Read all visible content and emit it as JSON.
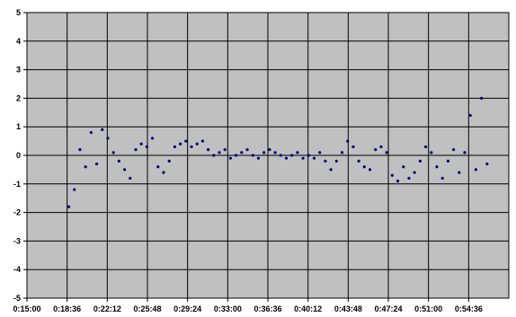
{
  "chart_data": {
    "type": "scatter",
    "title": "",
    "xlabel": "",
    "ylabel": "",
    "x_tick_labels": [
      "0:15:00",
      "0:18:36",
      "0:22:12",
      "0:25:48",
      "0:29:24",
      "0:33:00",
      "0:36:36",
      "0:40:12",
      "0:43:48",
      "0:47:24",
      "0:51:00",
      "0:54:36"
    ],
    "y_tick_labels": [
      "5",
      "4",
      "3",
      "2",
      "1",
      "0",
      "-1",
      "-2",
      "-3",
      "-4",
      "-5"
    ],
    "xlim": [
      "0:15:00",
      "0:58:12"
    ],
    "ylim": [
      -5,
      5
    ],
    "grid": true,
    "colors": {
      "plot_bg": "#c0c0c0",
      "marker": "#000080",
      "grid": "#000000"
    },
    "series": [
      {
        "x": [
          "0:18:45",
          "0:19:15",
          "0:19:45",
          "0:20:15",
          "0:20:45",
          "0:21:15",
          "0:21:45",
          "0:22:15",
          "0:22:45",
          "0:23:15",
          "0:23:45",
          "0:24:15",
          "0:24:45",
          "0:25:15",
          "0:25:45",
          "0:26:15",
          "0:26:45",
          "0:27:15",
          "0:27:45",
          "0:28:15",
          "0:28:45",
          "0:29:15",
          "0:29:45",
          "0:30:15",
          "0:30:45",
          "0:31:15",
          "0:31:45",
          "0:32:15",
          "0:32:45",
          "0:33:15",
          "0:33:45",
          "0:34:15",
          "0:34:45",
          "0:35:15",
          "0:35:45",
          "0:36:15",
          "0:36:45",
          "0:37:15",
          "0:37:45",
          "0:38:15",
          "0:38:45",
          "0:39:15",
          "0:39:45",
          "0:40:15",
          "0:40:45",
          "0:41:15",
          "0:41:45",
          "0:42:15",
          "0:42:45",
          "0:43:15",
          "0:43:45",
          "0:44:15",
          "0:44:45",
          "0:45:15",
          "0:45:45",
          "0:46:15",
          "0:46:45",
          "0:47:15",
          "0:47:45",
          "0:48:15",
          "0:48:45",
          "0:49:15",
          "0:49:45",
          "0:50:15",
          "0:50:45",
          "0:51:15",
          "0:51:45",
          "0:52:15",
          "0:52:45",
          "0:53:15",
          "0:53:45",
          "0:54:15",
          "0:54:45",
          "0:55:15",
          "0:55:45",
          "0:56:15"
        ],
        "y": [
          -1.8,
          -1.2,
          0.2,
          -0.4,
          0.8,
          -0.3,
          0.9,
          0.6,
          0.1,
          -0.2,
          -0.5,
          -0.8,
          0.2,
          0.4,
          0.3,
          0.6,
          -0.4,
          -0.6,
          -0.2,
          0.3,
          0.4,
          0.5,
          0.3,
          0.4,
          0.5,
          0.2,
          0.0,
          0.1,
          0.2,
          -0.1,
          0.0,
          0.1,
          0.2,
          0.0,
          -0.1,
          0.1,
          0.2,
          0.1,
          0.0,
          -0.1,
          0.0,
          0.1,
          -0.1,
          0.0,
          -0.1,
          0.1,
          -0.2,
          -0.5,
          -0.2,
          0.1,
          0.5,
          0.3,
          -0.2,
          -0.4,
          -0.5,
          0.2,
          0.3,
          0.1,
          -0.7,
          -0.9,
          -0.4,
          -0.8,
          -0.6,
          -0.2,
          0.3,
          0.1,
          -0.4,
          -0.8,
          -0.2,
          0.2,
          -0.6,
          0.1,
          1.4,
          -0.5,
          2.0,
          -0.3
        ]
      }
    ]
  }
}
